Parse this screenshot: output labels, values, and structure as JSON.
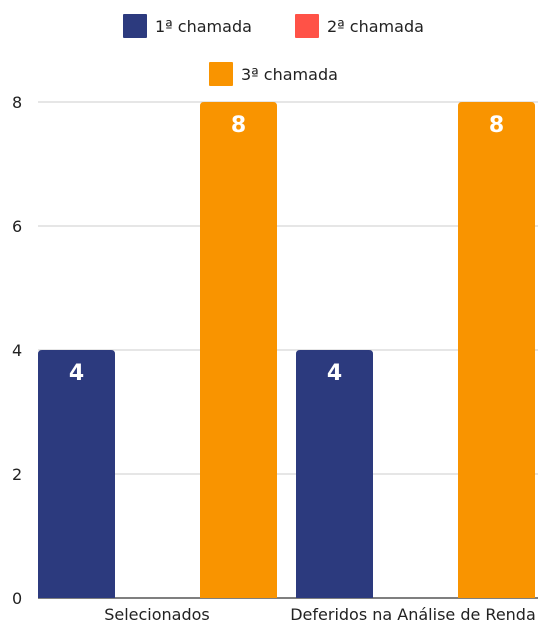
{
  "chart_data": {
    "type": "bar",
    "categories": [
      "Selecionados",
      "Deferidos na Análise de Renda"
    ],
    "series": [
      {
        "name": "1ª chamada",
        "values": [
          4,
          4
        ],
        "color": "#2c3a7e"
      },
      {
        "name": "2ª chamada",
        "values": [
          0,
          0
        ],
        "color": "#ff5247"
      },
      {
        "name": "3ª chamada",
        "values": [
          8,
          8
        ],
        "color": "#f99400"
      }
    ],
    "ylim": [
      0,
      8
    ],
    "yticks": [
      "0",
      "2",
      "4",
      "6",
      "8"
    ],
    "grid": true,
    "legend_position": "top",
    "data_labels": true
  }
}
